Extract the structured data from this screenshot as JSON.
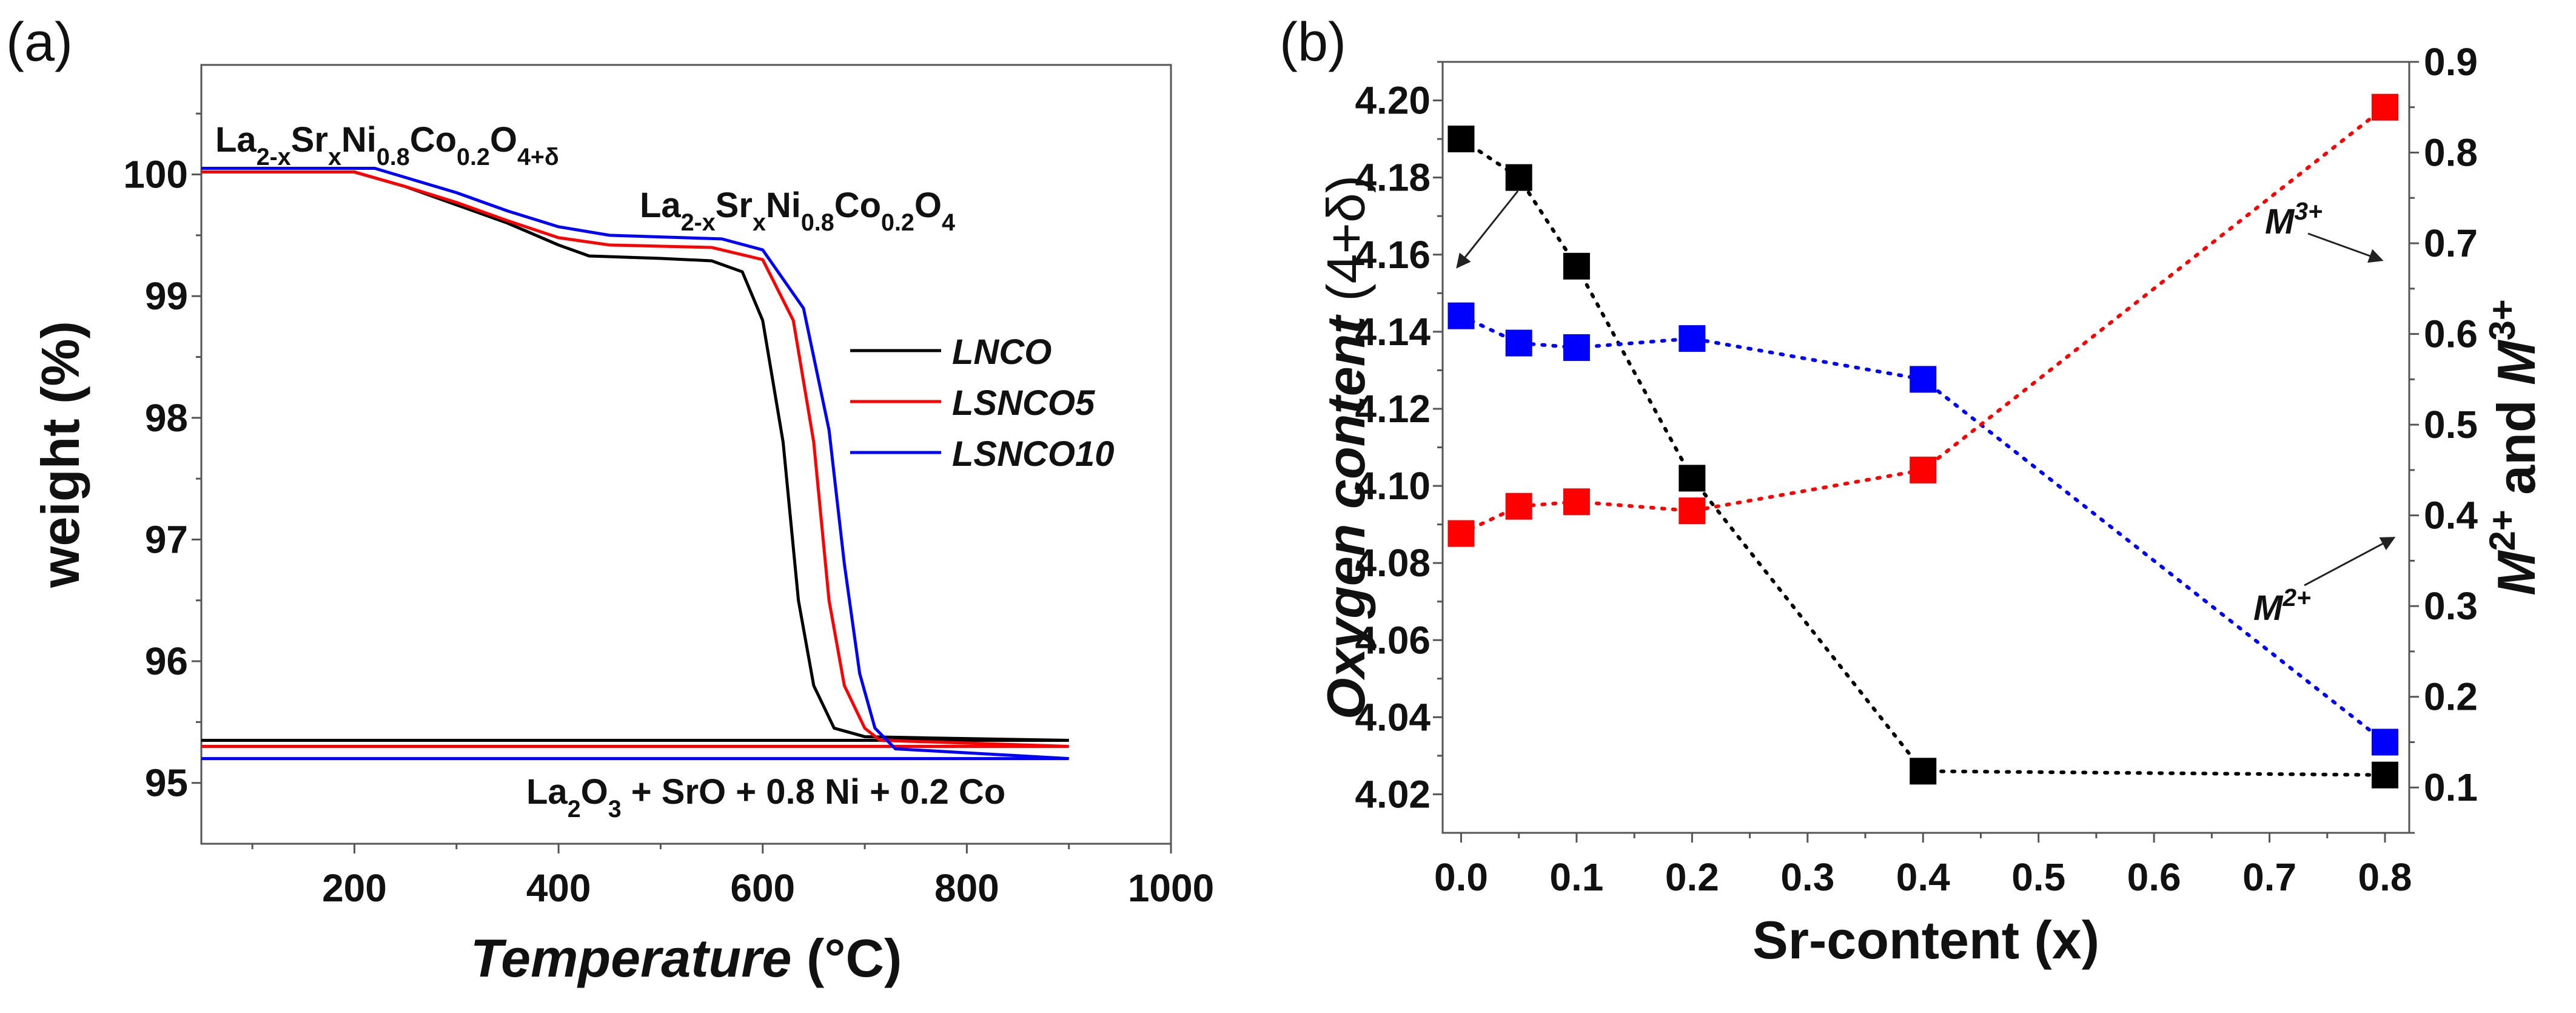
{
  "chart_data": [
    {
      "panel_label": "(a)",
      "type": "line",
      "xlabel": "Temperature (°C)",
      "xlabel_parts": [
        "Temperature",
        " (°C)"
      ],
      "ylabel": "weight (%)",
      "xlim": [
        50,
        1000
      ],
      "ylim": [
        94.5,
        100.9
      ],
      "xticks": [
        200,
        400,
        600,
        800,
        1000
      ],
      "yticks": [
        95,
        96,
        97,
        98,
        99,
        100
      ],
      "legend_position": "center-right",
      "series": [
        {
          "name": "LNCO",
          "color": "#000000",
          "x": [
            50,
            200,
            250,
            300,
            350,
            400,
            430,
            500,
            550,
            580,
            600,
            620,
            635,
            650,
            670,
            700,
            760,
            900
          ],
          "y": [
            100.02,
            100.02,
            99.9,
            99.75,
            99.6,
            99.42,
            99.33,
            99.31,
            99.29,
            99.2,
            98.8,
            97.8,
            96.5,
            95.8,
            95.45,
            95.38,
            95.37,
            95.35
          ],
          "baseline": 95.35
        },
        {
          "name": "LSNCO5",
          "color": "#ff0000",
          "x": [
            50,
            200,
            250,
            300,
            350,
            400,
            450,
            550,
            600,
            630,
            650,
            665,
            680,
            700,
            715,
            900
          ],
          "y": [
            100.02,
            100.02,
            99.9,
            99.77,
            99.62,
            99.48,
            99.42,
            99.4,
            99.3,
            98.8,
            97.8,
            96.5,
            95.8,
            95.45,
            95.35,
            95.3
          ],
          "baseline": 95.3
        },
        {
          "name": "LSNCO10",
          "color": "#0000ff",
          "x": [
            50,
            220,
            300,
            350,
            400,
            450,
            560,
            600,
            640,
            665,
            680,
            695,
            710,
            730,
            900
          ],
          "y": [
            100.05,
            100.05,
            99.85,
            99.7,
            99.57,
            99.5,
            99.47,
            99.38,
            98.9,
            97.9,
            96.8,
            95.9,
            95.45,
            95.28,
            95.2
          ],
          "baseline": 95.2
        }
      ],
      "annotations": [
        {
          "parts": [
            [
              "La",
              ""
            ],
            [
              "2-x",
              "sub"
            ],
            [
              "Sr",
              ""
            ],
            [
              "x",
              "sub"
            ],
            [
              "Ni",
              ""
            ],
            [
              "0.8",
              "sub"
            ],
            [
              "Co",
              ""
            ],
            [
              "0.2",
              "sub"
            ],
            [
              "O",
              ""
            ],
            [
              "4+δ",
              "sub"
            ]
          ]
        },
        {
          "parts": [
            [
              "La",
              ""
            ],
            [
              "2-x",
              "sub"
            ],
            [
              "Sr",
              ""
            ],
            [
              "x",
              "sub"
            ],
            [
              "Ni",
              ""
            ],
            [
              "0.8",
              "sub"
            ],
            [
              "Co",
              ""
            ],
            [
              "0.2",
              "sub"
            ],
            [
              "O",
              ""
            ],
            [
              "4",
              "sub"
            ]
          ]
        },
        {
          "parts": [
            [
              "La",
              ""
            ],
            [
              "2",
              "sub"
            ],
            [
              "O",
              ""
            ],
            [
              "3",
              "sub"
            ],
            [
              " + SrO + 0.8 Ni + 0.2 Co",
              ""
            ]
          ]
        }
      ]
    },
    {
      "panel_label": "(b)",
      "type": "scatter",
      "xlabel": "Sr-content (x)",
      "ylabel": "Oxygen content (4+δ)",
      "ylabel_parts": [
        "Oxygen content",
        " (4+δ)"
      ],
      "y2label_parts": [
        [
          "M",
          ""
        ],
        [
          "2+",
          "sup"
        ],
        [
          " and ",
          ""
        ],
        [
          "M",
          ""
        ],
        [
          "3+",
          "sup"
        ]
      ],
      "xlim": [
        -0.016,
        0.821
      ],
      "ylim": [
        4.01,
        4.21
      ],
      "y2lim": [
        0.05,
        0.9
      ],
      "xticks": [
        "0.0",
        "0.1",
        "0.2",
        "0.3",
        "0.4",
        "0.5",
        "0.6",
        "0.7",
        "0.8"
      ],
      "yticks": [
        "4.02",
        "4.04",
        "4.06",
        "4.08",
        "4.10",
        "4.12",
        "4.14",
        "4.16",
        "4.18",
        "4.20"
      ],
      "y2ticks": [
        "0.1",
        "0.2",
        "0.3",
        "0.4",
        "0.5",
        "0.6",
        "0.7",
        "0.8",
        "0.9"
      ],
      "x": [
        0,
        0.05,
        0.1,
        0.2,
        0.4,
        0.8
      ],
      "series": [
        {
          "name": "Oxygen content",
          "axis": "left",
          "color": "#000000",
          "values": [
            4.19,
            4.18,
            4.157,
            4.102,
            4.026,
            4.025
          ]
        },
        {
          "name": "M2+",
          "axis": "right",
          "color": "#0000ff",
          "values": [
            0.62,
            0.59,
            0.585,
            0.595,
            0.55,
            0.15
          ],
          "label_parts": [
            [
              "M",
              ""
            ],
            [
              "2+",
              "sup"
            ]
          ]
        },
        {
          "name": "M3+",
          "axis": "right",
          "color": "#ff0000",
          "values": [
            0.38,
            0.41,
            0.415,
            0.405,
            0.45,
            0.85
          ],
          "label_parts": [
            [
              "M",
              ""
            ],
            [
              "3+",
              "sup"
            ]
          ]
        }
      ]
    }
  ]
}
